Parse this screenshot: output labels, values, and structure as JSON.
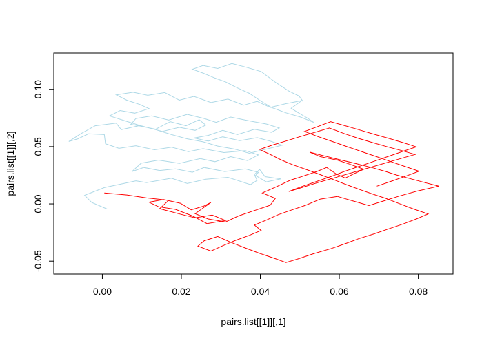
{
  "chart_data": {
    "type": "line",
    "title": "",
    "xlabel": "pairs.list[[1]][,1]",
    "ylabel": "pairs.list[[1]][,2]",
    "xlim": [
      -0.0123,
      0.0888
    ],
    "ylim": [
      -0.0613,
      0.1317
    ],
    "xticks": [
      0.0,
      0.02,
      0.04,
      0.06,
      0.08
    ],
    "xtick_labels": [
      "0.00",
      "0.02",
      "0.04",
      "0.06",
      "0.08"
    ],
    "yticks": [
      -0.05,
      0.0,
      0.05,
      0.1
    ],
    "ytick_labels": [
      "-0.05",
      "0.00",
      "0.05",
      "0.10"
    ],
    "grid": false,
    "legend": "none",
    "series": [
      {
        "color": "#add8e6",
        "x": [
          0.0012,
          -0.0027,
          -0.0045,
          0.0005,
          0.0085,
          0.0112,
          0.0175,
          0.0215,
          0.0262,
          0.0318,
          0.0375,
          0.0392,
          0.0385,
          0.0398,
          0.0412,
          0.0452,
          0.0415,
          0.0388,
          0.0395,
          0.0362,
          0.031,
          0.0258,
          0.0228,
          0.0185,
          0.0145,
          0.0105,
          0.0075,
          0.0098,
          0.0142,
          0.0195,
          0.0248,
          0.0285,
          0.0325,
          0.0368,
          0.0395,
          0.0362,
          0.0308,
          0.0255,
          0.0218,
          0.0175,
          0.0132,
          0.0085,
          0.0042,
          0.0008,
          0.0005,
          -0.0035,
          -0.0062,
          -0.0085,
          -0.0055,
          -0.0018,
          0.0035,
          0.0048,
          0.0092,
          0.0135,
          0.0172,
          0.0212,
          0.0245,
          0.0262,
          0.0235,
          0.0195,
          0.0152,
          0.0108,
          0.0072,
          0.0085,
          0.0125,
          0.0168,
          0.0215,
          0.0258,
          0.0288,
          0.0325,
          0.0372,
          0.0415,
          0.0448,
          0.0428,
          0.0385,
          0.0342,
          0.0305,
          0.0268,
          0.0232,
          0.0268,
          0.0305,
          0.0348,
          0.0392,
          0.0428,
          0.0455,
          0.0412,
          0.0372,
          0.0335,
          0.0292,
          0.0255,
          0.0215,
          0.0175,
          0.0135,
          0.0095,
          0.0055,
          0.0018,
          0.0045,
          0.0082,
          0.0118,
          0.0095,
          0.0062,
          0.0035,
          0.0078,
          0.0115,
          0.0158,
          0.0195,
          0.0232,
          0.0275,
          0.0318,
          0.0358,
          0.0392,
          0.0425,
          0.0465,
          0.0505,
          0.0478,
          0.0495,
          0.0518,
          0.0535,
          0.0502,
          0.0465,
          0.0428,
          0.0398,
          0.0372,
          0.0342,
          0.0312,
          0.0285,
          0.0255,
          0.0228,
          0.0255,
          0.0292,
          0.0328,
          0.0365,
          0.0402,
          0.0438,
          0.0472,
          0.0498,
          0.0508
        ],
        "y": [
          -0.0045,
          0.0012,
          0.0075,
          0.0142,
          0.0201,
          0.0186,
          0.0224,
          0.0178,
          0.0215,
          0.0232,
          0.0168,
          0.0205,
          0.0256,
          0.0301,
          0.0238,
          0.0218,
          0.0192,
          0.0248,
          0.0275,
          0.0305,
          0.0282,
          0.0318,
          0.0276,
          0.0305,
          0.0291,
          0.0318,
          0.0282,
          0.0355,
          0.0382,
          0.0354,
          0.0395,
          0.0368,
          0.0412,
          0.0378,
          0.0428,
          0.0465,
          0.0448,
          0.0482,
          0.0456,
          0.0495,
          0.0472,
          0.0508,
          0.0485,
          0.0525,
          0.0605,
          0.0612,
          0.0568,
          0.0545,
          0.0612,
          0.0682,
          0.0705,
          0.0648,
          0.0682,
          0.0652,
          0.0718,
          0.0682,
          0.0735,
          0.0688,
          0.0642,
          0.0668,
          0.0632,
          0.0672,
          0.0695,
          0.0745,
          0.0768,
          0.0732,
          0.0782,
          0.0745,
          0.0712,
          0.0758,
          0.0725,
          0.0698,
          0.0662,
          0.0625,
          0.0651,
          0.0605,
          0.0642,
          0.0598,
          0.0575,
          0.0548,
          0.0585,
          0.0552,
          0.0578,
          0.0545,
          0.0512,
          0.0475,
          0.0442,
          0.0478,
          0.0505,
          0.0542,
          0.0568,
          0.0605,
          0.0648,
          0.0685,
          0.0728,
          0.0768,
          0.0815,
          0.0792,
          0.0832,
          0.0868,
          0.0905,
          0.0952,
          0.0975,
          0.0948,
          0.0972,
          0.0905,
          0.0938,
          0.0885,
          0.0915,
          0.0862,
          0.0895,
          0.0842,
          0.0875,
          0.0902,
          0.0835,
          0.0798,
          0.0752,
          0.0712,
          0.0758,
          0.0795,
          0.0842,
          0.0905,
          0.0965,
          0.1012,
          0.1065,
          0.1098,
          0.1142,
          0.1175,
          0.1208,
          0.1182,
          0.1225,
          0.1192,
          0.1155,
          0.1062,
          0.0985,
          0.0942,
          0.0895
        ]
      },
      {
        "color": "#ff0000",
        "x": [
          0.0005,
          0.0062,
          0.0112,
          0.0168,
          0.0145,
          0.0192,
          0.0235,
          0.0278,
          0.0312,
          0.0265,
          0.0228,
          0.0185,
          0.0142,
          0.0118,
          0.0155,
          0.0198,
          0.0225,
          0.0258,
          0.0275,
          0.0235,
          0.0268,
          0.0312,
          0.0345,
          0.0388,
          0.0425,
          0.0438,
          0.0405,
          0.0442,
          0.0475,
          0.0508,
          0.0545,
          0.0568,
          0.0592,
          0.0615,
          0.0638,
          0.0662,
          0.0628,
          0.0595,
          0.0552,
          0.0525,
          0.0555,
          0.0598,
          0.0642,
          0.0685,
          0.0718,
          0.0745,
          0.0782,
          0.0818,
          0.0852,
          0.0798,
          0.0752,
          0.0712,
          0.0675,
          0.0632,
          0.0595,
          0.0552,
          0.0515,
          0.0478,
          0.0445,
          0.0415,
          0.0385,
          0.0402,
          0.0372,
          0.0338,
          0.0305,
          0.0275,
          0.0242,
          0.0258,
          0.0292,
          0.0325,
          0.0362,
          0.0398,
          0.0435,
          0.0465,
          0.0498,
          0.0535,
          0.0578,
          0.0615,
          0.0648,
          0.0688,
          0.0725,
          0.0762,
          0.0795,
          0.0825,
          0.0788,
          0.0752,
          0.0718,
          0.0685,
          0.0652,
          0.0618,
          0.0585,
          0.0552,
          0.0518,
          0.0482,
          0.0452,
          0.0425,
          0.0398,
          0.0432,
          0.0468,
          0.0502,
          0.0538,
          0.0575,
          0.0612,
          0.0648,
          0.0685,
          0.0722,
          0.0758,
          0.0792,
          0.0755,
          0.0718,
          0.0682,
          0.0645,
          0.0608,
          0.0572,
          0.0538,
          0.0505,
          0.0472,
          0.0505,
          0.0542,
          0.0578,
          0.0612,
          0.0648,
          0.0685,
          0.0722,
          0.0758,
          0.0795,
          0.0762,
          0.0725,
          0.0688,
          0.0652,
          0.0615,
          0.0578,
          0.0545,
          0.0512,
          0.0545,
          0.0582,
          0.0618,
          0.0655,
          0.0692,
          0.0728,
          0.0765,
          0.0802,
          0.0768,
          0.0732,
          0.0695
        ],
        "y": [
          0.0095,
          0.0078,
          0.0052,
          0.0031,
          -0.0042,
          -0.0085,
          -0.0122,
          -0.0098,
          -0.0145,
          -0.0172,
          -0.0105,
          -0.0048,
          -0.0025,
          0.0015,
          0.0038,
          0.0005,
          -0.0052,
          -0.0018,
          0.0012,
          -0.0085,
          -0.0132,
          -0.0158,
          -0.0105,
          -0.0055,
          -0.0012,
          0.0048,
          0.0095,
          0.0152,
          0.0205,
          0.0242,
          0.0285,
          0.0318,
          0.0262,
          0.0225,
          0.0265,
          0.0302,
          0.0345,
          0.0382,
          0.0412,
          0.0452,
          0.0425,
          0.0388,
          0.0352,
          0.0315,
          0.0282,
          0.0252,
          0.0218,
          0.0185,
          0.0155,
          0.0112,
          0.0068,
          0.0025,
          -0.0015,
          0.0028,
          0.0065,
          0.0042,
          -0.0012,
          -0.0055,
          -0.0095,
          -0.0142,
          -0.0185,
          -0.0232,
          -0.0275,
          -0.0318,
          -0.0365,
          -0.0412,
          -0.0368,
          -0.0322,
          -0.0285,
          -0.0335,
          -0.0385,
          -0.0432,
          -0.0475,
          -0.0512,
          -0.0478,
          -0.0435,
          -0.0392,
          -0.0348,
          -0.0305,
          -0.0262,
          -0.0218,
          -0.0175,
          -0.0132,
          -0.0088,
          -0.0045,
          0.0002,
          0.0048,
          0.0085,
          0.0125,
          0.0168,
          0.0212,
          0.0255,
          0.0298,
          0.0342,
          0.0385,
          0.0432,
          0.0475,
          0.0515,
          0.0552,
          0.0588,
          0.0625,
          0.0662,
          0.0615,
          0.0572,
          0.0535,
          0.0498,
          0.0465,
          0.0432,
          0.0395,
          0.0358,
          0.0322,
          0.0285,
          0.0248,
          0.0212,
          0.0178,
          0.0142,
          0.0108,
          0.0152,
          0.0195,
          0.0238,
          0.0282,
          0.0325,
          0.0368,
          0.0412,
          0.0455,
          0.0498,
          0.0535,
          0.0572,
          0.0608,
          0.0645,
          0.0682,
          0.0718,
          0.0675,
          0.0632,
          0.0588,
          0.0545,
          0.0502,
          0.0458,
          0.0415,
          0.0372,
          0.0328,
          0.0285,
          0.0242,
          0.0198,
          0.0155
        ]
      }
    ]
  }
}
